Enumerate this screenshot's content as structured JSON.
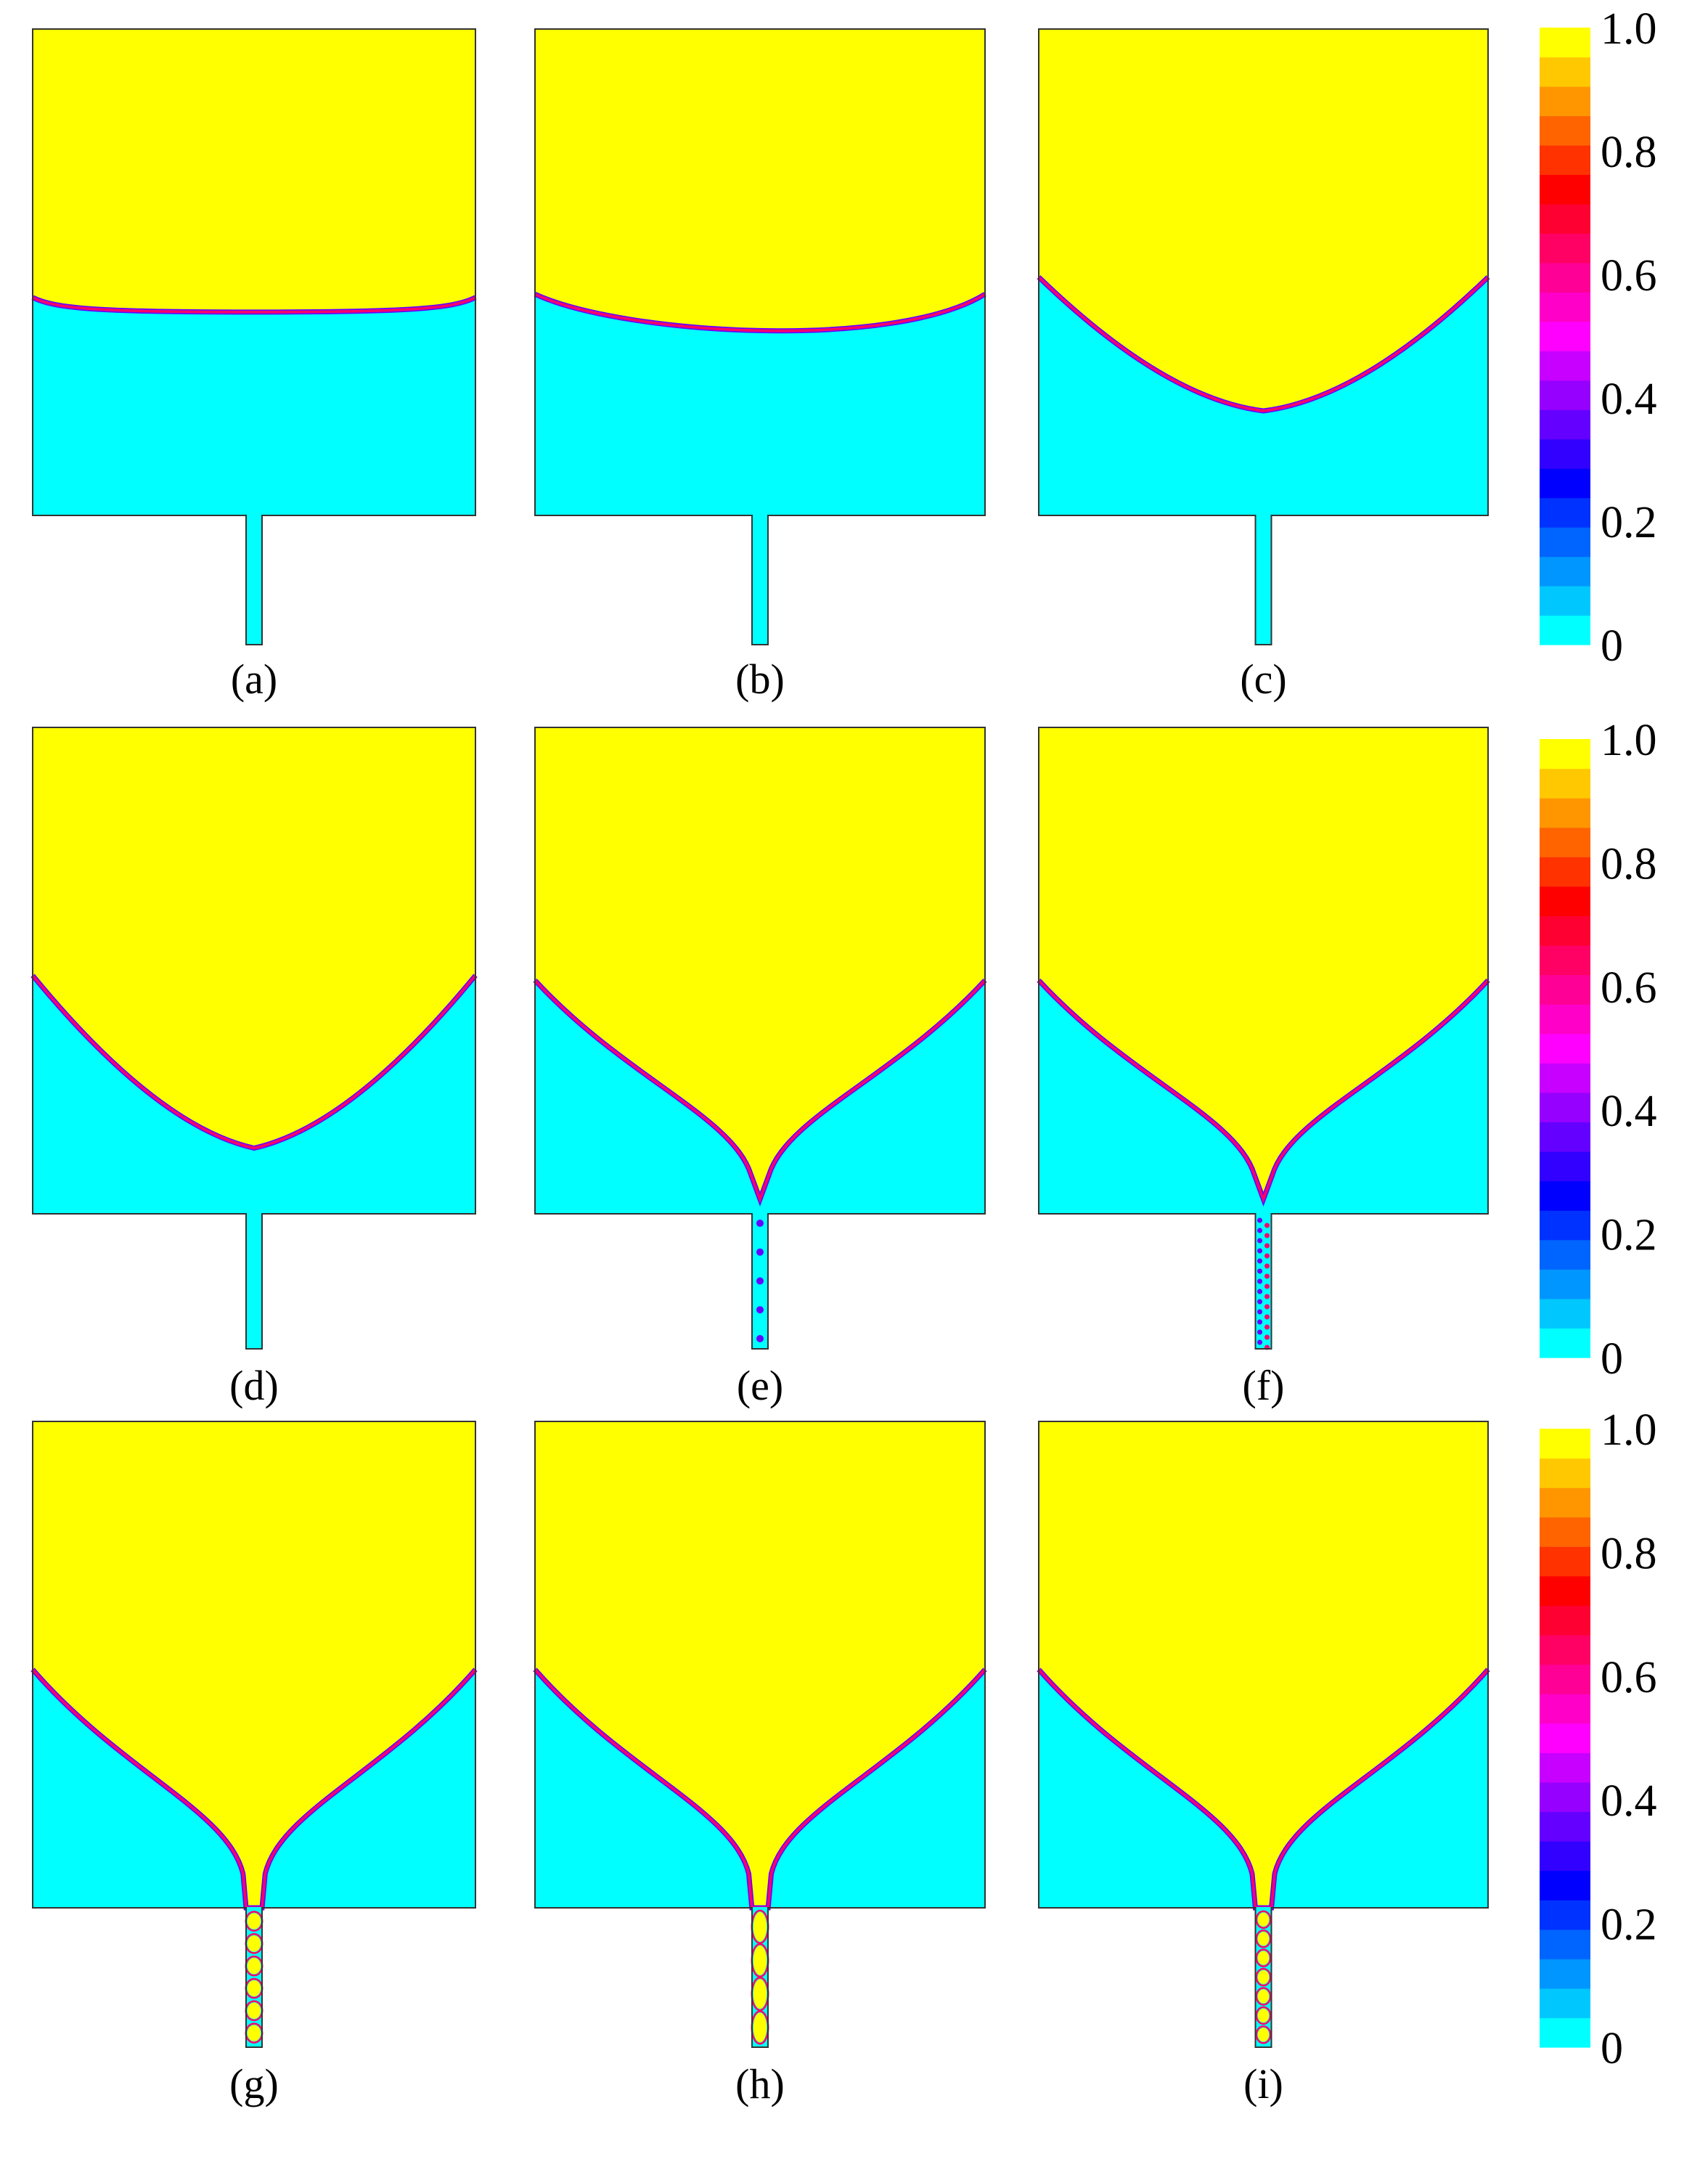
{
  "figure": {
    "panels": [
      {
        "label": "(a)",
        "interface_shape": "flat",
        "channel_content": "empty"
      },
      {
        "label": "(b)",
        "interface_shape": "slight-curve",
        "channel_content": "empty"
      },
      {
        "label": "(c)",
        "interface_shape": "v",
        "channel_content": "empty"
      },
      {
        "label": "(d)",
        "interface_shape": "deep-v",
        "channel_content": "empty"
      },
      {
        "label": "(e)",
        "interface_shape": "cusp",
        "channel_content": "sparse-dots"
      },
      {
        "label": "(f)",
        "interface_shape": "cusp",
        "channel_content": "dense-dots"
      },
      {
        "label": "(g)",
        "interface_shape": "neck",
        "channel_content": "blobs"
      },
      {
        "label": "(h)",
        "interface_shape": "neck",
        "channel_content": "large-blobs"
      },
      {
        "label": "(i)",
        "interface_shape": "neck",
        "channel_content": "chain"
      }
    ],
    "colorbar": {
      "tick_labels": [
        "1.0",
        "0.8",
        "0.6",
        "0.4",
        "0.2",
        "0"
      ],
      "colors": [
        "#00ffff",
        "#00c8ff",
        "#0096ff",
        "#0064ff",
        "#0032ff",
        "#0000ff",
        "#3200ff",
        "#6400ff",
        "#9600ff",
        "#c800ff",
        "#ff00ff",
        "#ff00c8",
        "#ff0096",
        "#ff0064",
        "#ff0032",
        "#ff0000",
        "#ff3200",
        "#ff6400",
        "#ff9600",
        "#ffc800",
        "#ffff00"
      ]
    },
    "colors": {
      "phase_high": "#ffff00",
      "phase_low": "#00ffff",
      "interface_a": "#ff0066",
      "interface_b": "#6600ff",
      "outline": "#333333"
    }
  }
}
